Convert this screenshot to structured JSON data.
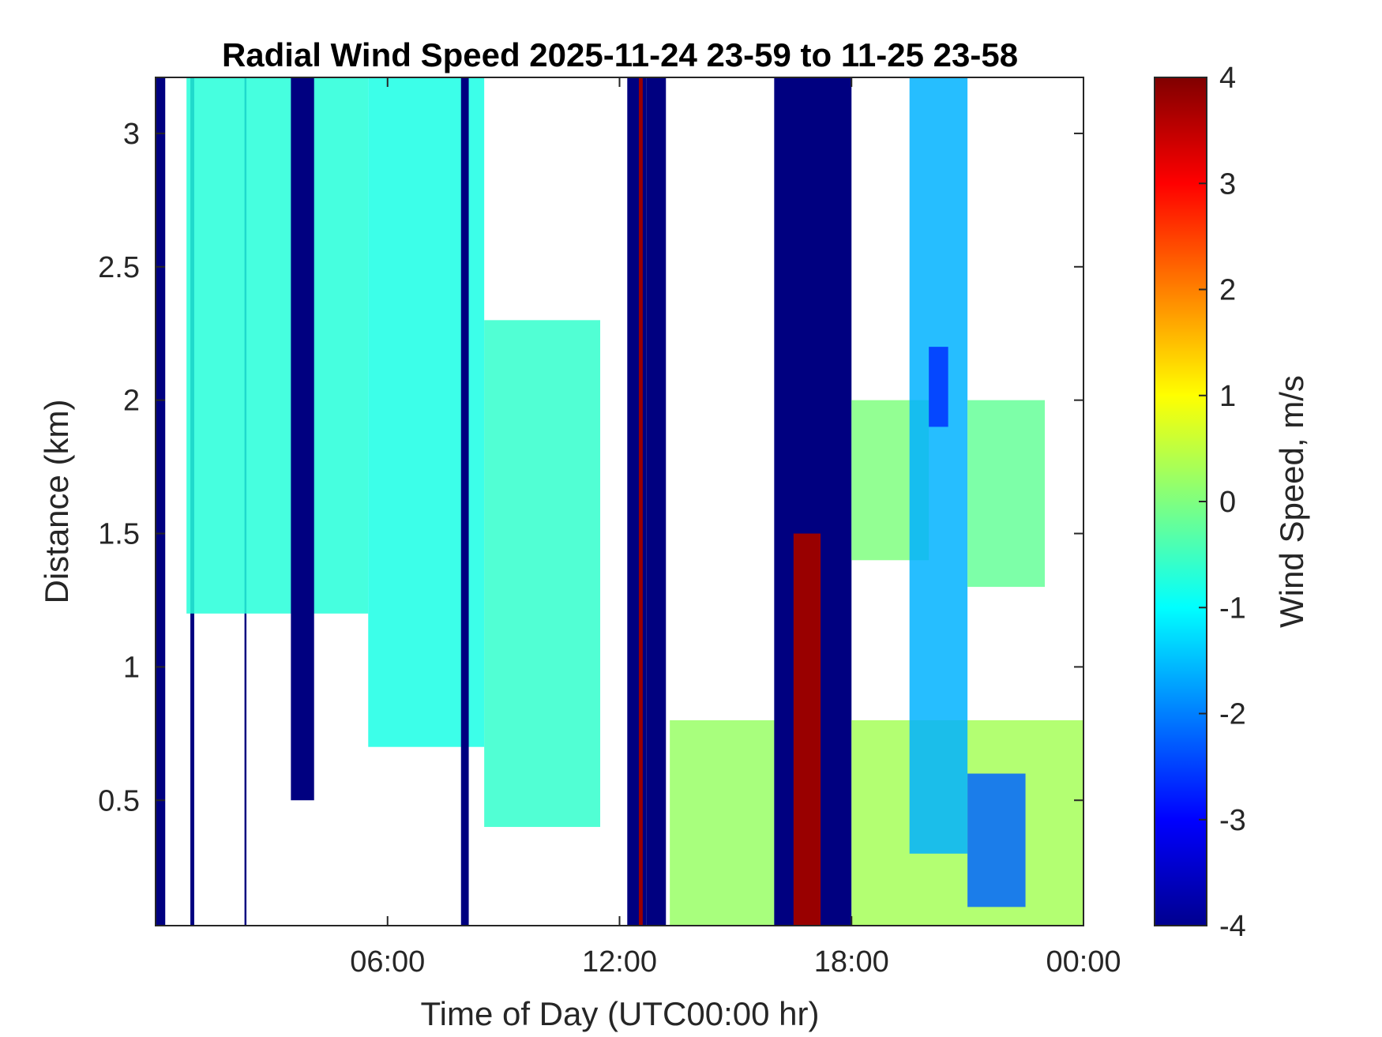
{
  "chart_data": {
    "type": "heatmap",
    "title": "Radial Wind Speed 2025-11-24 23-59 to 11-25 23-58",
    "xlabel": "Time of Day (UTC00:00 hr)",
    "ylabel": "Distance (km)",
    "x_ticks": [
      "06:00",
      "12:00",
      "18:00",
      "00:00"
    ],
    "x_tick_hours": [
      6,
      12,
      18,
      24
    ],
    "xlim_hours": [
      0,
      24
    ],
    "y_ticks": [
      "0.5",
      "1",
      "1.5",
      "2",
      "2.5",
      "3"
    ],
    "y_tick_values": [
      0.5,
      1,
      1.5,
      2,
      2.5,
      3
    ],
    "ylim": [
      0.03,
      3.21
    ],
    "colorbar": {
      "label": "Wind Speed, m/s",
      "ticks": [
        "-4",
        "-3",
        "-2",
        "-1",
        "0",
        "1",
        "2",
        "3",
        "4"
      ],
      "tick_values": [
        -4,
        -3,
        -2,
        -1,
        0,
        1,
        2,
        3,
        4
      ],
      "range": [
        -4,
        4
      ],
      "colormap": "jet"
    },
    "regions": [
      {
        "x": [
          0.0,
          0.25
        ],
        "y": [
          0.03,
          3.21
        ],
        "value": -4
      },
      {
        "x": [
          0.9,
          1.0
        ],
        "y": [
          0.03,
          3.21
        ],
        "value": -4
      },
      {
        "x": [
          2.3,
          2.35
        ],
        "y": [
          0.03,
          3.21
        ],
        "value": -4
      },
      {
        "x": [
          0.8,
          5.5
        ],
        "y": [
          1.2,
          3.21
        ],
        "value": -0.7
      },
      {
        "x": [
          5.5,
          8.5
        ],
        "y": [
          0.7,
          3.21
        ],
        "value": -0.8
      },
      {
        "x": [
          8.5,
          11.5
        ],
        "y": [
          0.4,
          2.3
        ],
        "value": -0.6
      },
      {
        "x": [
          3.5,
          4.1
        ],
        "y": [
          0.5,
          3.21
        ],
        "value": -4
      },
      {
        "x": [
          7.9,
          8.1
        ],
        "y": [
          0.03,
          3.21
        ],
        "value": -4
      },
      {
        "x": [
          12.2,
          12.7
        ],
        "y": [
          0.03,
          3.21
        ],
        "value": -4
      },
      {
        "x": [
          12.7,
          13.2
        ],
        "y": [
          0.03,
          3.21
        ],
        "value": -4
      },
      {
        "x": [
          12.5,
          12.6
        ],
        "y": [
          0.03,
          3.21
        ],
        "value": 3.8
      },
      {
        "x": [
          13.3,
          17.5
        ],
        "y": [
          0.03,
          0.8
        ],
        "value": 0.2
      },
      {
        "x": [
          16.0,
          18.0
        ],
        "y": [
          0.03,
          3.21
        ],
        "value": -4
      },
      {
        "x": [
          16.5,
          17.2
        ],
        "y": [
          0.03,
          1.5
        ],
        "value": 3.8
      },
      {
        "x": [
          18.0,
          24.0
        ],
        "y": [
          0.03,
          0.8
        ],
        "value": 0.3
      },
      {
        "x": [
          18.0,
          20.0
        ],
        "y": [
          1.4,
          2.0
        ],
        "value": 0.0
      },
      {
        "x": [
          19.5,
          21.0
        ],
        "y": [
          0.3,
          3.21
        ],
        "value": -1.6
      },
      {
        "x": [
          20.0,
          20.5
        ],
        "y": [
          1.9,
          2.2
        ],
        "value": -2.6
      },
      {
        "x": [
          21.0,
          23.0
        ],
        "y": [
          1.3,
          2.0
        ],
        "value": -0.2
      },
      {
        "x": [
          21.0,
          22.5
        ],
        "y": [
          0.1,
          0.6
        ],
        "value": -2.2
      }
    ]
  }
}
